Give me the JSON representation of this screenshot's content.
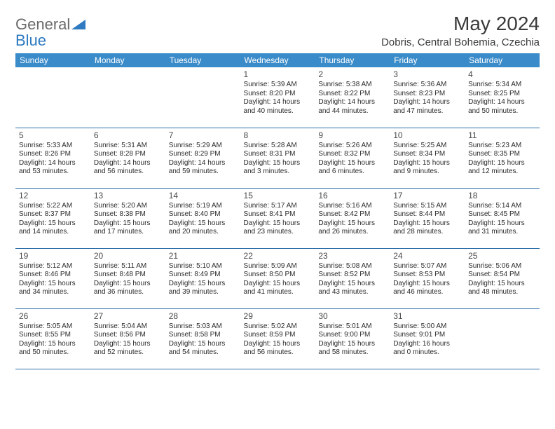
{
  "brand": {
    "part1": "General",
    "part2": "Blue"
  },
  "title": "May 2024",
  "location": "Dobris, Central Bohemia, Czechia",
  "colors": {
    "header_bg": "#3a8bc9",
    "header_text": "#ffffff",
    "row_border": "#2f6fa8",
    "text": "#2b2b2b",
    "brand_gray": "#6b6b6b",
    "brand_blue": "#2f7ac0"
  },
  "day_headers": [
    "Sunday",
    "Monday",
    "Tuesday",
    "Wednesday",
    "Thursday",
    "Friday",
    "Saturday"
  ],
  "weeks": [
    [
      null,
      null,
      null,
      {
        "d": "1",
        "sr": "5:39 AM",
        "ss": "8:20 PM",
        "dl": "14 hours and 40 minutes."
      },
      {
        "d": "2",
        "sr": "5:38 AM",
        "ss": "8:22 PM",
        "dl": "14 hours and 44 minutes."
      },
      {
        "d": "3",
        "sr": "5:36 AM",
        "ss": "8:23 PM",
        "dl": "14 hours and 47 minutes."
      },
      {
        "d": "4",
        "sr": "5:34 AM",
        "ss": "8:25 PM",
        "dl": "14 hours and 50 minutes."
      }
    ],
    [
      {
        "d": "5",
        "sr": "5:33 AM",
        "ss": "8:26 PM",
        "dl": "14 hours and 53 minutes."
      },
      {
        "d": "6",
        "sr": "5:31 AM",
        "ss": "8:28 PM",
        "dl": "14 hours and 56 minutes."
      },
      {
        "d": "7",
        "sr": "5:29 AM",
        "ss": "8:29 PM",
        "dl": "14 hours and 59 minutes."
      },
      {
        "d": "8",
        "sr": "5:28 AM",
        "ss": "8:31 PM",
        "dl": "15 hours and 3 minutes."
      },
      {
        "d": "9",
        "sr": "5:26 AM",
        "ss": "8:32 PM",
        "dl": "15 hours and 6 minutes."
      },
      {
        "d": "10",
        "sr": "5:25 AM",
        "ss": "8:34 PM",
        "dl": "15 hours and 9 minutes."
      },
      {
        "d": "11",
        "sr": "5:23 AM",
        "ss": "8:35 PM",
        "dl": "15 hours and 12 minutes."
      }
    ],
    [
      {
        "d": "12",
        "sr": "5:22 AM",
        "ss": "8:37 PM",
        "dl": "15 hours and 14 minutes."
      },
      {
        "d": "13",
        "sr": "5:20 AM",
        "ss": "8:38 PM",
        "dl": "15 hours and 17 minutes."
      },
      {
        "d": "14",
        "sr": "5:19 AM",
        "ss": "8:40 PM",
        "dl": "15 hours and 20 minutes."
      },
      {
        "d": "15",
        "sr": "5:17 AM",
        "ss": "8:41 PM",
        "dl": "15 hours and 23 minutes."
      },
      {
        "d": "16",
        "sr": "5:16 AM",
        "ss": "8:42 PM",
        "dl": "15 hours and 26 minutes."
      },
      {
        "d": "17",
        "sr": "5:15 AM",
        "ss": "8:44 PM",
        "dl": "15 hours and 28 minutes."
      },
      {
        "d": "18",
        "sr": "5:14 AM",
        "ss": "8:45 PM",
        "dl": "15 hours and 31 minutes."
      }
    ],
    [
      {
        "d": "19",
        "sr": "5:12 AM",
        "ss": "8:46 PM",
        "dl": "15 hours and 34 minutes."
      },
      {
        "d": "20",
        "sr": "5:11 AM",
        "ss": "8:48 PM",
        "dl": "15 hours and 36 minutes."
      },
      {
        "d": "21",
        "sr": "5:10 AM",
        "ss": "8:49 PM",
        "dl": "15 hours and 39 minutes."
      },
      {
        "d": "22",
        "sr": "5:09 AM",
        "ss": "8:50 PM",
        "dl": "15 hours and 41 minutes."
      },
      {
        "d": "23",
        "sr": "5:08 AM",
        "ss": "8:52 PM",
        "dl": "15 hours and 43 minutes."
      },
      {
        "d": "24",
        "sr": "5:07 AM",
        "ss": "8:53 PM",
        "dl": "15 hours and 46 minutes."
      },
      {
        "d": "25",
        "sr": "5:06 AM",
        "ss": "8:54 PM",
        "dl": "15 hours and 48 minutes."
      }
    ],
    [
      {
        "d": "26",
        "sr": "5:05 AM",
        "ss": "8:55 PM",
        "dl": "15 hours and 50 minutes."
      },
      {
        "d": "27",
        "sr": "5:04 AM",
        "ss": "8:56 PM",
        "dl": "15 hours and 52 minutes."
      },
      {
        "d": "28",
        "sr": "5:03 AM",
        "ss": "8:58 PM",
        "dl": "15 hours and 54 minutes."
      },
      {
        "d": "29",
        "sr": "5:02 AM",
        "ss": "8:59 PM",
        "dl": "15 hours and 56 minutes."
      },
      {
        "d": "30",
        "sr": "5:01 AM",
        "ss": "9:00 PM",
        "dl": "15 hours and 58 minutes."
      },
      {
        "d": "31",
        "sr": "5:00 AM",
        "ss": "9:01 PM",
        "dl": "16 hours and 0 minutes."
      },
      null
    ]
  ],
  "labels": {
    "sunrise": "Sunrise:",
    "sunset": "Sunset:",
    "daylight": "Daylight:"
  }
}
